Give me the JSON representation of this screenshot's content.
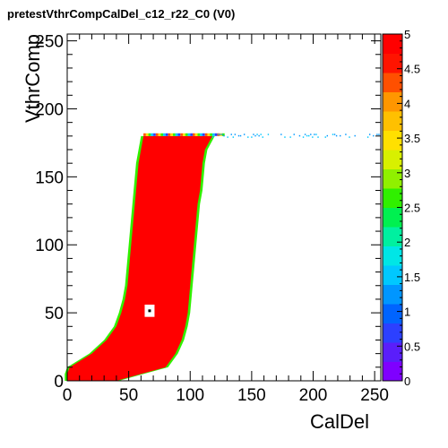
{
  "chart_data": {
    "type": "heatmap",
    "title": "pretestVthrCompCalDel_c12_r22_C0 (V0)",
    "xlabel": "CalDel",
    "ylabel": "VthrComp",
    "xlim": [
      0,
      255
    ],
    "ylim": [
      0,
      255
    ],
    "zlim": [
      0,
      5
    ],
    "x_ticks": [
      0,
      50,
      100,
      150,
      200,
      250
    ],
    "y_ticks": [
      0,
      50,
      100,
      150,
      200,
      250
    ],
    "z_ticks": [
      "0",
      "0.5",
      "1",
      "1.5",
      "2",
      "2.5",
      "3",
      "3.5",
      "4",
      "4.5",
      "5"
    ],
    "palette_colors": [
      "#7f00ff",
      "#5a1efa",
      "#2c40ff",
      "#0064ff",
      "#0096ff",
      "#00c8ff",
      "#00e6e6",
      "#00f0a0",
      "#00f050",
      "#30f000",
      "#90f000",
      "#d8f000",
      "#ffe000",
      "#ffc000",
      "#ff9600",
      "#ff5000",
      "#ff1400",
      "#ff0000"
    ],
    "region_value": 5,
    "region": {
      "description_ys": [
        0,
        5,
        10,
        20,
        30,
        40,
        50,
        60,
        70,
        80,
        90,
        100,
        110,
        120,
        130,
        140,
        150,
        160,
        170,
        180
      ],
      "x_left": [
        0,
        0,
        2,
        20,
        32,
        40,
        44,
        47,
        49,
        50,
        51,
        52,
        53,
        54,
        55,
        56,
        57,
        58,
        60,
        62
      ],
      "x_right": [
        40,
        60,
        80,
        88,
        93,
        96,
        98,
        99,
        100,
        101,
        102,
        103,
        104,
        105,
        106,
        108,
        109,
        110,
        112,
        118
      ]
    },
    "plateau_y": 180,
    "plateau_x_range": [
      118,
      255
    ],
    "plateau_value": 1.5,
    "hole": {
      "x": [
        63,
        71
      ],
      "y": [
        47,
        56
      ],
      "center_value": 5
    }
  }
}
